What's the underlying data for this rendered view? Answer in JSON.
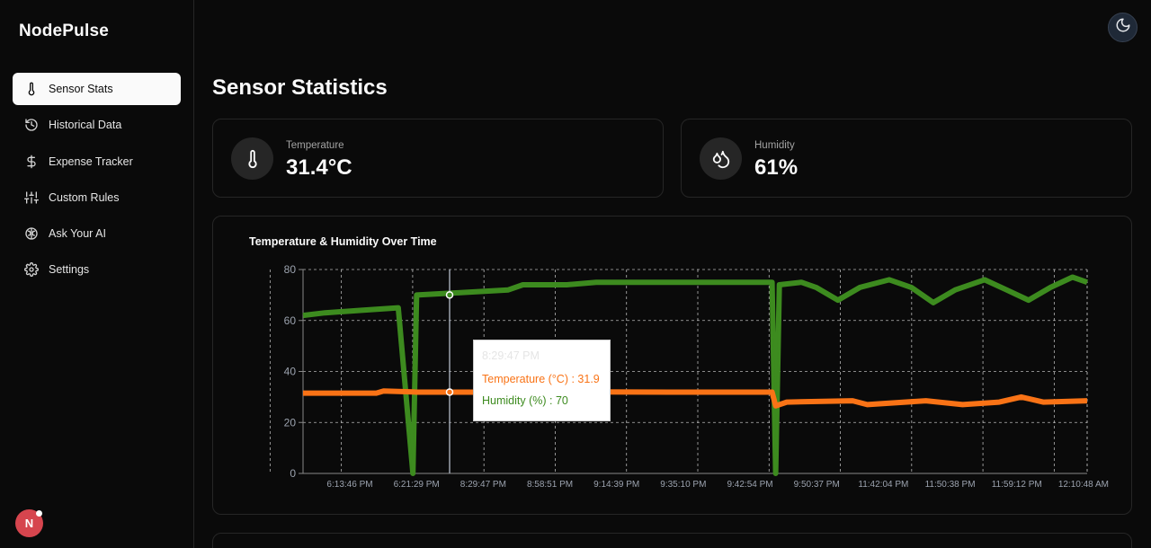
{
  "app": {
    "brand": "NodePulse",
    "avatar_letter": "N"
  },
  "sidebar": {
    "items": [
      {
        "label": "Sensor Stats",
        "icon": "thermometer-icon",
        "active": true
      },
      {
        "label": "Historical Data",
        "icon": "history-icon"
      },
      {
        "label": "Expense Tracker",
        "icon": "dollar-icon"
      },
      {
        "label": "Custom Rules",
        "icon": "sliders-icon"
      },
      {
        "label": "Ask Your AI",
        "icon": "brain-icon"
      },
      {
        "label": "Settings",
        "icon": "gear-icon"
      }
    ]
  },
  "header": {
    "theme_toggle_icon": "moon-icon"
  },
  "main": {
    "title": "Sensor Statistics",
    "stats": {
      "temperature": {
        "label": "Temperature",
        "value": "31.4°C",
        "icon": "thermometer-icon"
      },
      "humidity": {
        "label": "Humidity",
        "value": "61%",
        "icon": "droplets-icon"
      }
    }
  },
  "tooltip": {
    "time": "8:29:47 PM",
    "temperature": "Temperature (°C) : 31.9",
    "humidity": "Humidity (%) : 70"
  },
  "colors": {
    "temperature": "#f97316",
    "humidity": "#3d8b1f",
    "background": "#0a0a0a"
  },
  "chart_data": {
    "type": "line",
    "title": "Temperature & Humidity Over Time",
    "xlabel": "",
    "ylabel": "",
    "ylim": [
      0,
      80
    ],
    "yticks": [
      0,
      20,
      40,
      60,
      80
    ],
    "grid": true,
    "legend": "none",
    "x": [
      "6:13:46 PM",
      "6:21:29 PM",
      "8:29:47 PM",
      "8:58:51 PM",
      "9:14:39 PM",
      "9:35:10 PM",
      "9:42:54 PM",
      "9:50:37 PM",
      "11:42:04 PM",
      "11:50:38 PM",
      "11:59:12 PM",
      "12:10:48 AM"
    ],
    "series": [
      {
        "name": "Humidity (%)",
        "color": "#3d8b1f",
        "values": [
          [
            0,
            62
          ],
          [
            0.3,
            63
          ],
          [
            0.8,
            64
          ],
          [
            1.3,
            65
          ],
          [
            1.5,
            0
          ],
          [
            1.55,
            70
          ],
          [
            2.2,
            71
          ],
          [
            2.8,
            72
          ],
          [
            3.0,
            74
          ],
          [
            3.6,
            74
          ],
          [
            4.0,
            75
          ],
          [
            5.0,
            75
          ],
          [
            6.4,
            75
          ],
          [
            6.45,
            0
          ],
          [
            6.5,
            74
          ],
          [
            6.8,
            75
          ],
          [
            7.0,
            73
          ],
          [
            7.3,
            68
          ],
          [
            7.6,
            73
          ],
          [
            8.0,
            76
          ],
          [
            8.3,
            73
          ],
          [
            8.6,
            67
          ],
          [
            8.9,
            72
          ],
          [
            9.3,
            76
          ],
          [
            9.6,
            72
          ],
          [
            9.9,
            68
          ],
          [
            10.2,
            73
          ],
          [
            10.5,
            77
          ],
          [
            10.7,
            75
          ]
        ]
      },
      {
        "name": "Temperature (°C)",
        "color": "#f97316",
        "values": [
          [
            0,
            31.5
          ],
          [
            1.0,
            31.5
          ],
          [
            1.1,
            32.3
          ],
          [
            1.5,
            32
          ],
          [
            1.55,
            31.9
          ],
          [
            3.0,
            31.9
          ],
          [
            4.0,
            32
          ],
          [
            5.0,
            31.9
          ],
          [
            6.4,
            31.9
          ],
          [
            6.45,
            26.5
          ],
          [
            6.6,
            28
          ],
          [
            7.5,
            28.5
          ],
          [
            7.7,
            27
          ],
          [
            8.5,
            28.5
          ],
          [
            9.0,
            27
          ],
          [
            9.5,
            28
          ],
          [
            9.8,
            30
          ],
          [
            10.1,
            28
          ],
          [
            10.7,
            28.5
          ]
        ]
      }
    ]
  }
}
